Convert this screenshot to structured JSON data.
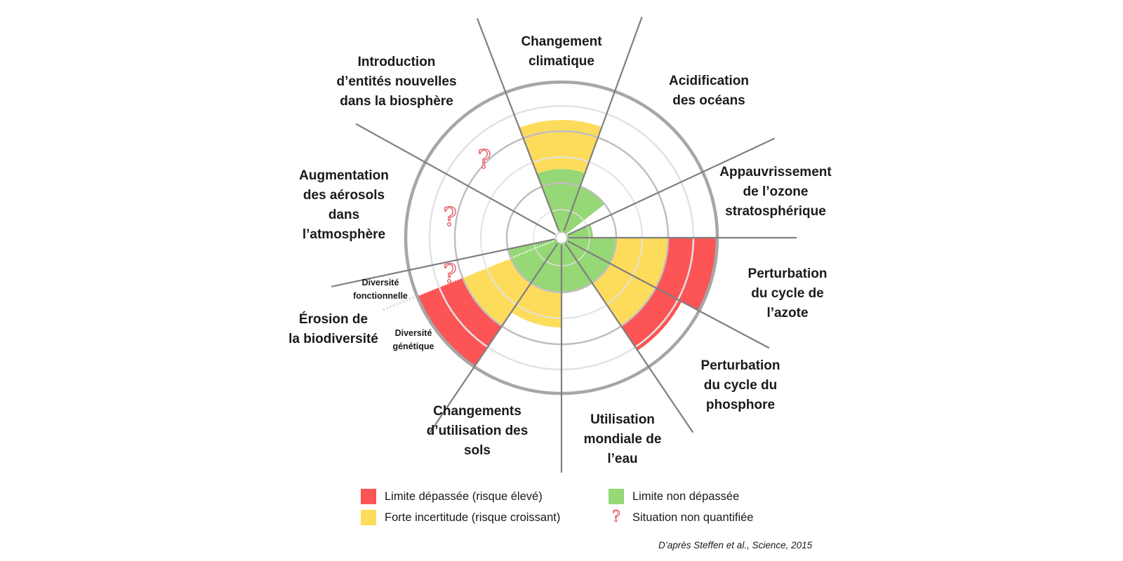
{
  "colors": {
    "exceeded": "#fd5455",
    "uncertain": "#fddc5c",
    "safe": "#96d776",
    "question": "#e0505a",
    "axis": "#7f7f7f",
    "outer_ring": "#a6a6a6",
    "inner_ring": "#bfbfbf",
    "faint_ring": "#e2e2e2"
  },
  "boundaries": [
    {
      "label": "Changement\nclimatique",
      "status": "uncertain"
    },
    {
      "label": "Acidification\ndes océans",
      "status": "safe"
    },
    {
      "label": "Appauvrissement\nde l’ozone\nstratosphérique",
      "status": "safe"
    },
    {
      "label": "Perturbation\ndu cycle de\nl’azote",
      "status": "exceeded"
    },
    {
      "label": "Perturbation\ndu cycle du\nphosphore",
      "status": "exceeded"
    },
    {
      "label": "Utilisation\nmondiale de\nl’eau",
      "status": "safe"
    },
    {
      "label": "Changements\nd’utilisation des\nsols",
      "status": "uncertain"
    },
    {
      "label": "Érosion de\nla biodiversité",
      "status": "exceeded",
      "sub_labels": [
        "Diversité\nfonctionnelle",
        "Diversité\ngénétique"
      ]
    },
    {
      "label": "Augmentation\ndes aérosols\ndans\nl’atmosphère",
      "status": "not-quantified"
    },
    {
      "label": "Introduction\nd’entités nouvelles\ndans la biosphère",
      "status": "not-quantified"
    }
  ],
  "legend": [
    {
      "text": "Limite dépassée (risque élevé)",
      "color": "#fd5455"
    },
    {
      "text": "Limite non dépassée",
      "color": "#96d776"
    },
    {
      "text": "Forte incertitude (risque croissant)",
      "color": "#fddc5c"
    },
    {
      "text": "Situation non quantifiée",
      "icon": "question-mark-icon"
    }
  ],
  "question_glyph": "?",
  "source": "D’après Steffen et al., Science, 2015"
}
